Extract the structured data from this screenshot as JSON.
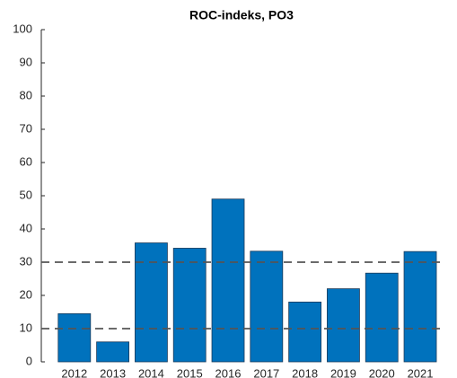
{
  "chart_data": {
    "type": "bar",
    "title": "ROC-indeks, PO3",
    "categories": [
      "2012",
      "2013",
      "2014",
      "2015",
      "2016",
      "2017",
      "2018",
      "2019",
      "2020",
      "2021"
    ],
    "values": [
      14.5,
      6,
      35.8,
      34.2,
      49,
      33.3,
      18,
      22,
      26.7,
      33.2
    ],
    "color": "#0072bd",
    "ylim": [
      0,
      100
    ],
    "yticks": [
      0,
      10,
      20,
      30,
      40,
      50,
      60,
      70,
      80,
      90,
      100
    ],
    "reference_lines": [
      10,
      30
    ]
  }
}
